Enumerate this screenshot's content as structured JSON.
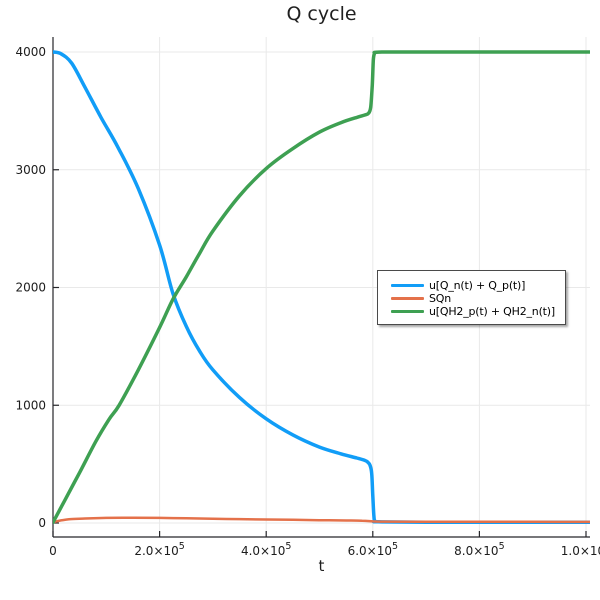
{
  "title": "Q cycle",
  "chart_data": {
    "type": "line",
    "title": "Q cycle",
    "xlabel": "t",
    "ylabel": "",
    "xlim": [
      0,
      1007000
    ],
    "ylim": [
      -120,
      4130
    ],
    "grid": true,
    "legend_position": "right-center-inside",
    "axis_color": "#26262a",
    "grid_color": "#e9e9e9",
    "x_ticks": [
      {
        "value": 0,
        "label": "0"
      },
      {
        "value": 200000,
        "label": "2.0×10^5"
      },
      {
        "value": 400000,
        "label": "4.0×10^5"
      },
      {
        "value": 600000,
        "label": "6.0×10^5"
      },
      {
        "value": 800000,
        "label": "8.0×10^5"
      },
      {
        "value": 1000000,
        "label": "1.0×10^6"
      }
    ],
    "y_ticks": [
      {
        "value": 0,
        "label": "0"
      },
      {
        "value": 1000,
        "label": "1000"
      },
      {
        "value": 2000,
        "label": "2000"
      },
      {
        "value": 3000,
        "label": "3000"
      },
      {
        "value": 4000,
        "label": "4000"
      }
    ],
    "series": [
      {
        "name": "u[Q_n(t) + Q_p(t)]",
        "color": "#119df7",
        "width": 3.5,
        "points": [
          [
            0,
            4000
          ],
          [
            15000,
            3985
          ],
          [
            35000,
            3905
          ],
          [
            60000,
            3700
          ],
          [
            90000,
            3445
          ],
          [
            122000,
            3190
          ],
          [
            160000,
            2840
          ],
          [
            200000,
            2360
          ],
          [
            225000,
            1950
          ],
          [
            250000,
            1670
          ],
          [
            275000,
            1460
          ],
          [
            300000,
            1300
          ],
          [
            350000,
            1065
          ],
          [
            400000,
            885
          ],
          [
            450000,
            748
          ],
          [
            500000,
            645
          ],
          [
            540000,
            588
          ],
          [
            570000,
            552
          ],
          [
            585000,
            532
          ],
          [
            591000,
            515
          ],
          [
            595000,
            488
          ],
          [
            598000,
            420
          ],
          [
            600000,
            230
          ],
          [
            602000,
            60
          ],
          [
            604000,
            18
          ],
          [
            610000,
            10
          ],
          [
            700000,
            7
          ],
          [
            850000,
            6
          ],
          [
            1007000,
            6
          ]
        ]
      },
      {
        "name": "SQn",
        "color": "#e4714a",
        "width": 2.5,
        "points": [
          [
            0,
            8
          ],
          [
            15000,
            22
          ],
          [
            30000,
            31
          ],
          [
            60000,
            38
          ],
          [
            100000,
            43
          ],
          [
            150000,
            45
          ],
          [
            200000,
            43
          ],
          [
            250000,
            40
          ],
          [
            300000,
            36
          ],
          [
            350000,
            33
          ],
          [
            400000,
            30
          ],
          [
            450000,
            27
          ],
          [
            500000,
            24
          ],
          [
            550000,
            21
          ],
          [
            580000,
            19
          ],
          [
            600000,
            14
          ],
          [
            620000,
            12
          ],
          [
            700000,
            11
          ],
          [
            800000,
            10
          ],
          [
            900000,
            10
          ],
          [
            1007000,
            9
          ]
        ]
      },
      {
        "name": "u[QH2_p(t) + QH2_n(t)]",
        "color": "#3ea052",
        "width": 3.5,
        "points": [
          [
            0,
            5
          ],
          [
            20000,
            175
          ],
          [
            50000,
            430
          ],
          [
            80000,
            690
          ],
          [
            105000,
            880
          ],
          [
            124000,
            1000
          ],
          [
            160000,
            1300
          ],
          [
            200000,
            1660
          ],
          [
            225000,
            1900
          ],
          [
            250000,
            2090
          ],
          [
            275000,
            2290
          ],
          [
            300000,
            2480
          ],
          [
            350000,
            2780
          ],
          [
            400000,
            3010
          ],
          [
            450000,
            3180
          ],
          [
            500000,
            3320
          ],
          [
            540000,
            3400
          ],
          [
            570000,
            3445
          ],
          [
            585000,
            3465
          ],
          [
            592000,
            3480
          ],
          [
            596000,
            3530
          ],
          [
            599000,
            3720
          ],
          [
            601000,
            3930
          ],
          [
            603000,
            3985
          ],
          [
            607000,
            3998
          ],
          [
            650000,
            4000
          ],
          [
            800000,
            4000
          ],
          [
            1007000,
            4000
          ]
        ]
      }
    ]
  }
}
